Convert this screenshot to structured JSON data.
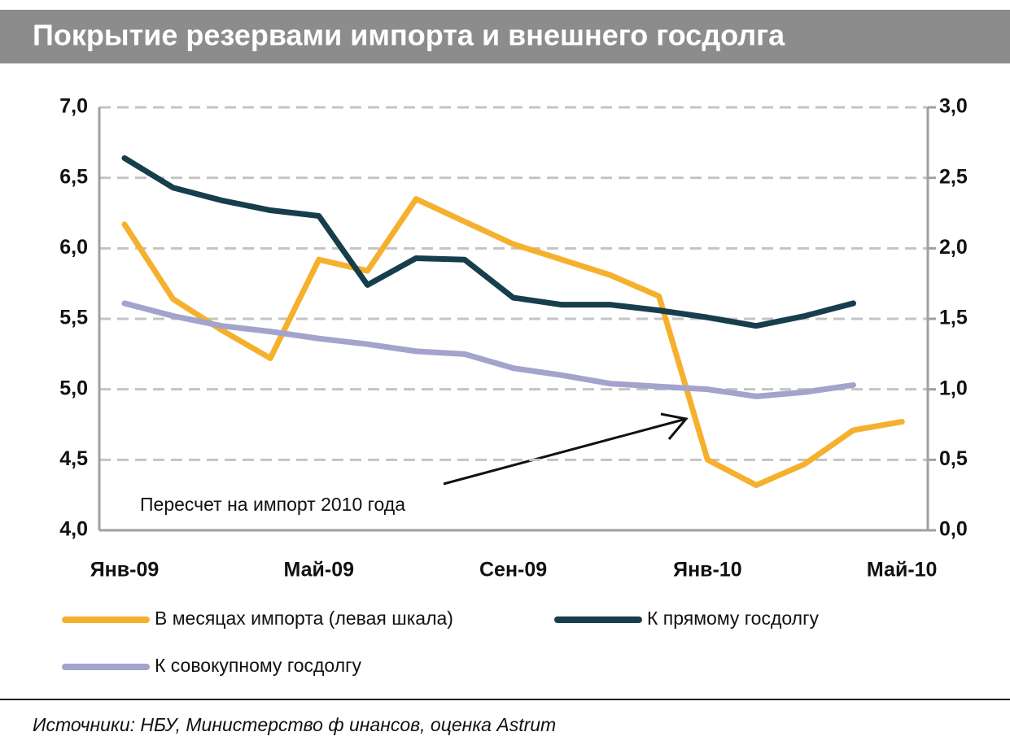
{
  "chart_data": {
    "type": "line",
    "title": "Покрытие резервами импорта и внешнего госдолга",
    "categories": [
      "Янв-09",
      null,
      null,
      null,
      "Май-09",
      null,
      null,
      null,
      "Сен-09",
      null,
      null,
      null,
      "Янв-10",
      null,
      null,
      null,
      "Май-10"
    ],
    "series": [
      {
        "name": "В месяцах импорта (левая шкала)",
        "color": "#f5b02e",
        "axis": "y",
        "values": [
          6.17,
          5.64,
          5.42,
          5.22,
          5.92,
          5.84,
          6.35,
          6.19,
          6.03,
          5.92,
          5.81,
          5.66,
          4.5,
          4.32,
          4.47,
          4.71,
          4.77
        ]
      },
      {
        "name": "К прямому госдолгу",
        "color": "#173e4d",
        "axis": "y2",
        "values": [
          2.64,
          2.43,
          2.34,
          2.27,
          2.23,
          1.74,
          1.93,
          1.92,
          1.65,
          1.6,
          1.6,
          1.56,
          1.51,
          1.45,
          1.52,
          1.61,
          null
        ]
      },
      {
        "name": "К совокупному госдолгу",
        "color": "#a3a3cc",
        "axis": "y2",
        "values": [
          1.61,
          1.52,
          1.45,
          1.41,
          1.36,
          1.32,
          1.27,
          1.25,
          1.15,
          1.1,
          1.04,
          1.02,
          1.0,
          0.95,
          0.98,
          1.03,
          null
        ]
      }
    ],
    "ylim": [
      4,
      7
    ],
    "yticks": [
      {
        "value": 4,
        "label": "4,0"
      },
      {
        "value": 4.5,
        "label": "4,5"
      },
      {
        "value": 5,
        "label": "5,0"
      },
      {
        "value": 5.5,
        "label": "5,5"
      },
      {
        "value": 6,
        "label": "6,0"
      },
      {
        "value": 6.5,
        "label": "6,5"
      },
      {
        "value": 7,
        "label": "7,0"
      }
    ],
    "y2lim": [
      0,
      3
    ],
    "y2ticks": [
      {
        "value": 0,
        "label": "0,0"
      },
      {
        "value": 0.5,
        "label": "0,5"
      },
      {
        "value": 1,
        "label": "1,0"
      },
      {
        "value": 1.5,
        "label": "1,5"
      },
      {
        "value": 2,
        "label": "2,0"
      },
      {
        "value": 2.5,
        "label": "2,5"
      },
      {
        "value": 3,
        "label": "3,0"
      }
    ],
    "grid": true,
    "annotation": "Пересчет на импорт  2010  года",
    "source": "Источники:  НБУ,  Министерство  ф инансов,  оценка  Astrum"
  }
}
